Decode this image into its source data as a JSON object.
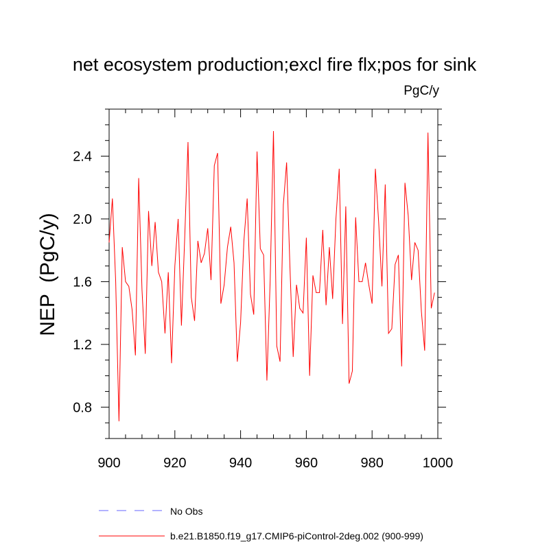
{
  "chart_data": {
    "type": "line",
    "title": "net ecosystem production;excl fire flx;pos for sink",
    "units_label": "PgC/y",
    "ylabel": "NEP  (PgC/y)",
    "xlabel": "",
    "xlim": [
      900,
      1000
    ],
    "ylim": [
      0.6,
      2.7
    ],
    "x_ticks": [
      900,
      920,
      940,
      960,
      980,
      1000
    ],
    "x_tick_labels": [
      "900",
      "920",
      "940",
      "960",
      "980",
      "1000"
    ],
    "y_ticks": [
      0.8,
      1.2,
      1.6,
      2.0,
      2.4
    ],
    "y_tick_labels": [
      "0.8",
      "1.2",
      "1.6",
      "2.0",
      "2.4"
    ],
    "grid": false,
    "legend_position": "bottom",
    "series": [
      {
        "name": "b.e21.B1850.f19_g17.CMIP6-piControl-2deg.002 (900-999)",
        "color": "#ff0000",
        "dash": "solid",
        "x_start": 900,
        "values": [
          1.85,
          2.13,
          1.6,
          0.71,
          1.82,
          1.6,
          1.57,
          1.42,
          1.13,
          2.26,
          1.55,
          1.14,
          2.05,
          1.7,
          1.98,
          1.66,
          1.6,
          1.27,
          1.66,
          1.08,
          1.7,
          2.0,
          1.32,
          1.88,
          2.49,
          1.5,
          1.35,
          1.86,
          1.72,
          1.78,
          1.94,
          1.61,
          2.34,
          2.42,
          1.46,
          1.58,
          1.82,
          1.95,
          1.72,
          1.09,
          1.34,
          1.86,
          2.13,
          1.52,
          1.39,
          2.43,
          1.81,
          1.77,
          0.97,
          1.61,
          2.56,
          1.19,
          1.09,
          2.09,
          2.36,
          1.7,
          1.12,
          1.58,
          1.43,
          1.4,
          1.88,
          1.0,
          1.64,
          1.53,
          1.53,
          1.93,
          1.45,
          1.82,
          1.49,
          2.0,
          2.32,
          1.33,
          2.08,
          0.95,
          1.03,
          2.01,
          1.6,
          1.6,
          1.72,
          1.58,
          1.46,
          2.32,
          1.98,
          1.57,
          2.22,
          1.27,
          1.3,
          1.71,
          1.77,
          1.06,
          2.23,
          2.02,
          1.61,
          1.85,
          1.8,
          1.41,
          1.16,
          2.55,
          1.43,
          1.53
        ]
      },
      {
        "name": "No Obs",
        "color": "#6666ff",
        "dash": "dashed",
        "values": []
      }
    ]
  },
  "legend": {
    "items": [
      {
        "label": "No Obs",
        "color": "#6666ff",
        "style": "dashed"
      },
      {
        "label": "b.e21.B1850.f19_g17.CMIP6-piControl-2deg.002 (900-999)",
        "color": "#ff0000",
        "style": "solid"
      }
    ]
  }
}
